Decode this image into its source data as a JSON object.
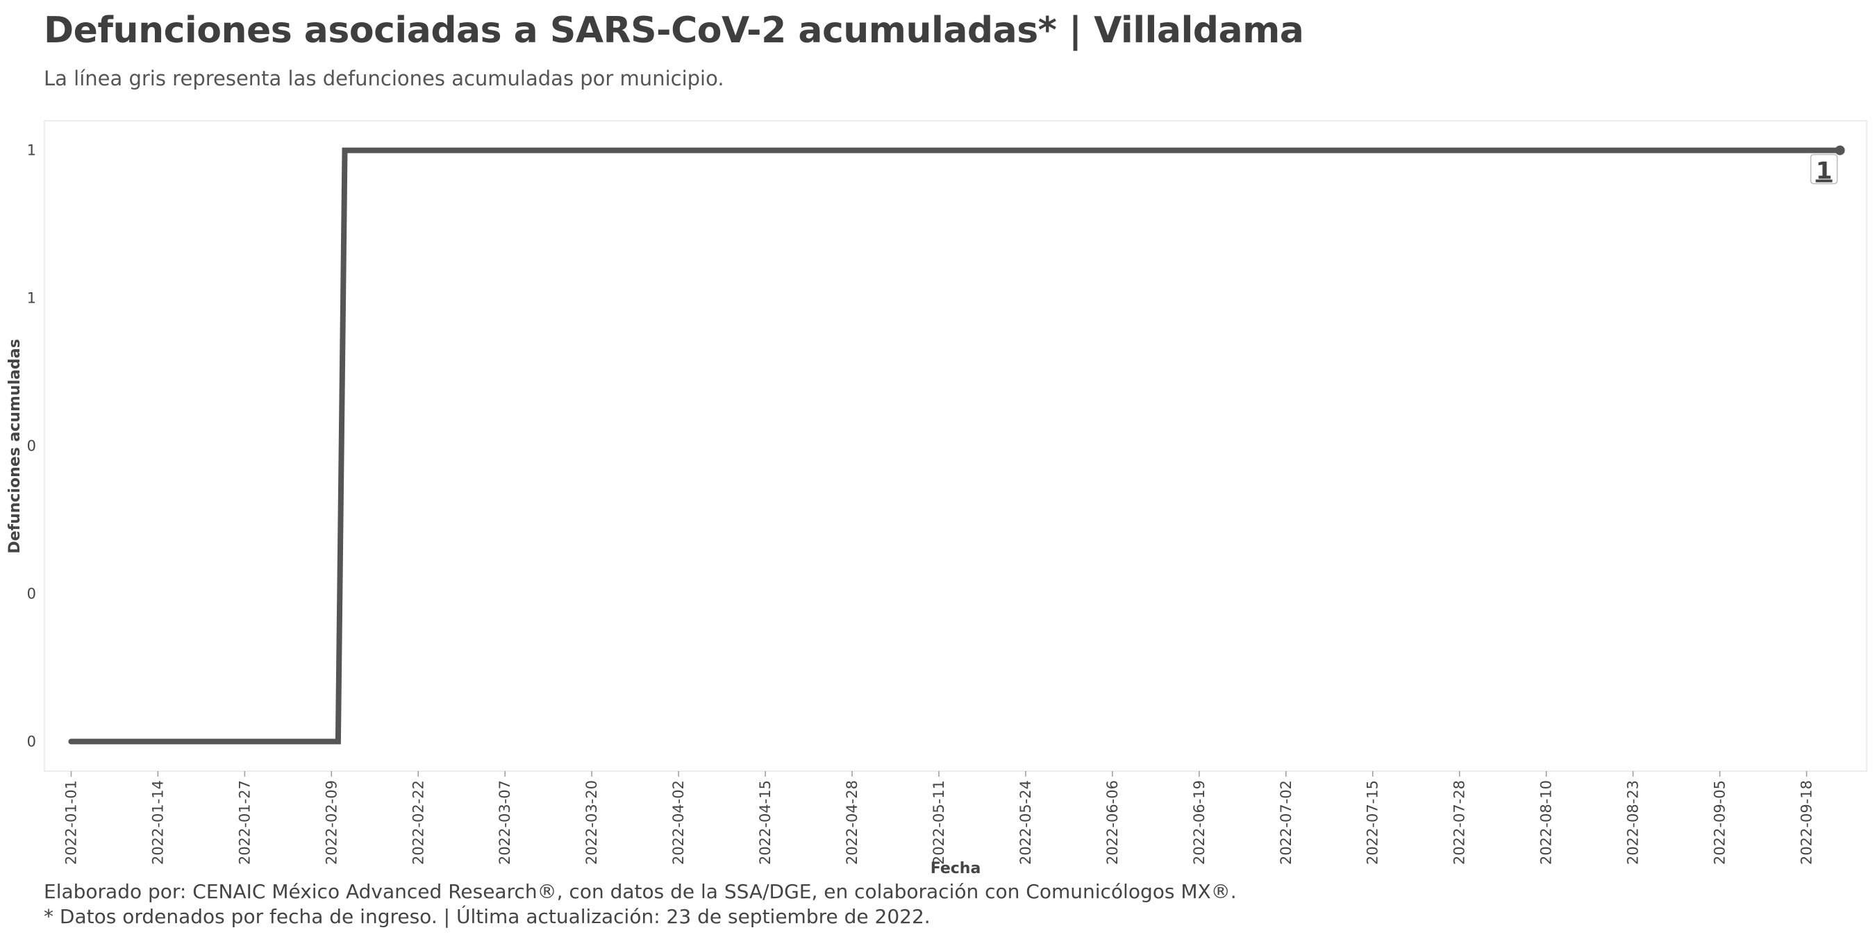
{
  "header": {
    "title": "Defunciones asociadas a SARS-CoV-2 acumuladas* | Villaldama",
    "subtitle": "La línea gris representa las defunciones acumuladas por municipio."
  },
  "footer": {
    "line1": "Elaborado por: CENAIC México Advanced Research®, con datos de la SSA/DGE, en colaboración con Comunicólogos MX®.",
    "line2": "* Datos ordenados por fecha de ingreso. | Última actualización: 23 de septiembre de 2022."
  },
  "colors": {
    "line": "#555555",
    "panel_border": "#e6e6e6"
  },
  "chart_data": {
    "type": "line",
    "xlabel": "Fecha",
    "ylabel": "Defunciones acumuladas",
    "x_type": "date",
    "xlim": [
      "2021-12-28",
      "2022-09-27"
    ],
    "ylim": [
      -0.05,
      1.05
    ],
    "x_ticks": [
      "2022-01-01",
      "2022-01-14",
      "2022-01-27",
      "2022-02-09",
      "2022-02-22",
      "2022-03-07",
      "2022-03-20",
      "2022-04-02",
      "2022-04-15",
      "2022-04-28",
      "2022-05-11",
      "2022-05-24",
      "2022-06-06",
      "2022-06-19",
      "2022-07-02",
      "2022-07-15",
      "2022-07-28",
      "2022-08-10",
      "2022-08-23",
      "2022-09-05",
      "2022-09-18"
    ],
    "y_ticks": [
      {
        "value": 0,
        "label": "0"
      },
      {
        "value": 0.25,
        "label": "0"
      },
      {
        "value": 0.5,
        "label": "0"
      },
      {
        "value": 0.75,
        "label": "1"
      },
      {
        "value": 1,
        "label": "1"
      }
    ],
    "grid": false,
    "series": [
      {
        "x": [
          "2022-01-01",
          "2022-02-10",
          "2022-02-11",
          "2022-09-23"
        ],
        "y": [
          0,
          0,
          1,
          1
        ]
      }
    ],
    "end_label": {
      "x": "2022-09-23",
      "y": 1,
      "text": "1"
    }
  }
}
